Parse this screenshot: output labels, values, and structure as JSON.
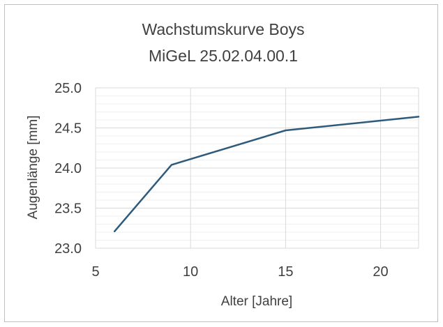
{
  "chart_data": {
    "type": "line",
    "title_lines": [
      "Wachstumskurve Boys",
      "MiGeL  25.02.04.00.1"
    ],
    "xlabel": "Alter [Jahre]",
    "ylabel": "Augenlänge [mm]",
    "xlim": [
      5,
      22
    ],
    "ylim": [
      23.0,
      25.0
    ],
    "x_ticks": [
      5,
      10,
      15,
      20
    ],
    "y_ticks": [
      23.0,
      23.5,
      24.0,
      24.5,
      25.0
    ],
    "x_tick_labels": [
      "5",
      "10",
      "15",
      "20"
    ],
    "y_tick_labels": [
      "23.0",
      "23.5",
      "24.0",
      "24.5",
      "25.0"
    ],
    "y_minor_step": 0.1,
    "grid": true,
    "series": [
      {
        "color": "#2e5a7c",
        "x": [
          6,
          9,
          15,
          22
        ],
        "y": [
          23.21,
          24.04,
          24.47,
          24.64
        ]
      }
    ]
  }
}
